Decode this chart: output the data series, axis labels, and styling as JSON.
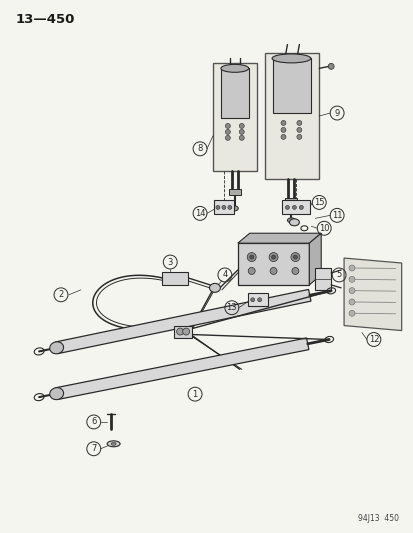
{
  "title": "13—450",
  "footer": "94J13  450",
  "bg_color": "#f5f5f0",
  "line_color": "#2a2a2a",
  "label_color": "#1a1a1a",
  "figsize": [
    4.14,
    5.33
  ],
  "dpi": 100
}
